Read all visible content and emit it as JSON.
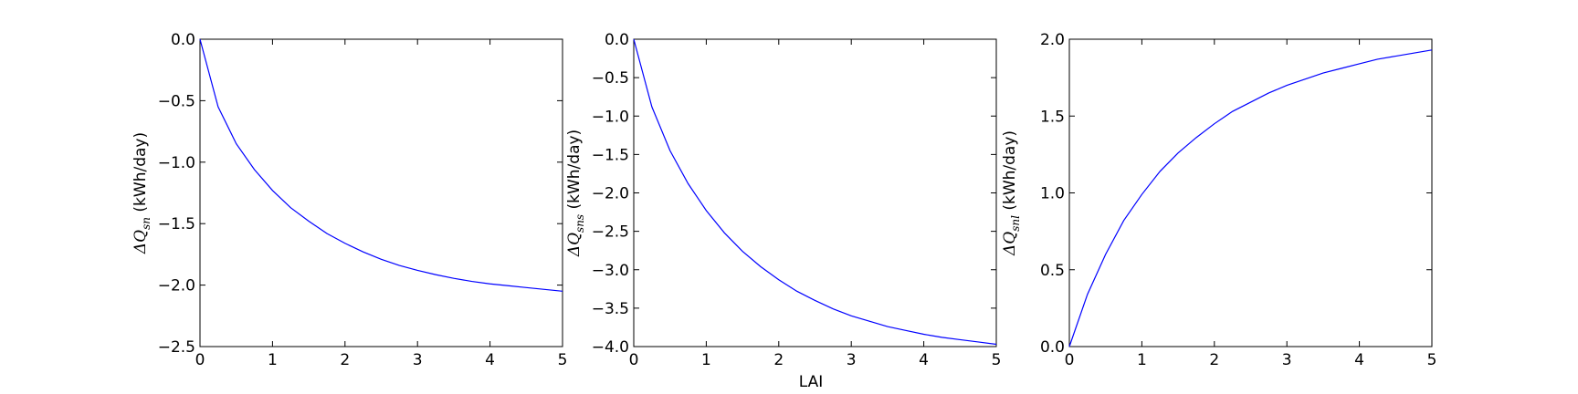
{
  "figure": {
    "xlabel": "LAI"
  },
  "chart_data": [
    {
      "type": "line",
      "ylabel": {
        "prefix": "ΔQ",
        "subscript": "sn",
        "unit": "(kWh/day)"
      },
      "xlim": [
        0,
        5
      ],
      "ylim": [
        -2.5,
        0.0
      ],
      "xticks": [
        "0",
        "1",
        "2",
        "3",
        "4",
        "5"
      ],
      "yticks": [
        "0.0",
        "−0.5",
        "−1.0",
        "−1.5",
        "−2.0",
        "−2.5"
      ],
      "color": "#0000ff",
      "series": [
        {
          "x": [
            0,
            0.25,
            0.5,
            0.75,
            1.0,
            1.25,
            1.5,
            1.75,
            2.0,
            2.25,
            2.5,
            2.75,
            3.0,
            3.25,
            3.5,
            3.75,
            4.0,
            4.25,
            4.5,
            4.75,
            5.0
          ],
          "y": [
            0.0,
            -0.55,
            -0.85,
            -1.06,
            -1.23,
            -1.37,
            -1.48,
            -1.58,
            -1.66,
            -1.73,
            -1.79,
            -1.84,
            -1.88,
            -1.915,
            -1.945,
            -1.97,
            -1.99,
            -2.005,
            -2.02,
            -2.035,
            -2.05
          ]
        }
      ]
    },
    {
      "type": "line",
      "ylabel": {
        "prefix": "ΔQ",
        "subscript": "sns",
        "unit": "(kWh/day)"
      },
      "xlim": [
        0,
        5
      ],
      "ylim": [
        -4.0,
        0.0
      ],
      "xticks": [
        "0",
        "1",
        "2",
        "3",
        "4",
        "5"
      ],
      "yticks": [
        "0.0",
        "−0.5",
        "−1.0",
        "−1.5",
        "−2.0",
        "−2.5",
        "−3.0",
        "−3.5",
        "−4.0"
      ],
      "color": "#0000ff",
      "series": [
        {
          "x": [
            0,
            0.25,
            0.5,
            0.75,
            1.0,
            1.25,
            1.5,
            1.75,
            2.0,
            2.25,
            2.5,
            2.75,
            3.0,
            3.25,
            3.5,
            3.75,
            4.0,
            4.25,
            4.5,
            4.75,
            5.0
          ],
          "y": [
            0.0,
            -0.88,
            -1.45,
            -1.88,
            -2.23,
            -2.52,
            -2.76,
            -2.96,
            -3.13,
            -3.28,
            -3.4,
            -3.51,
            -3.6,
            -3.67,
            -3.74,
            -3.79,
            -3.84,
            -3.88,
            -3.91,
            -3.94,
            -3.97
          ]
        }
      ]
    },
    {
      "type": "line",
      "ylabel": {
        "prefix": "ΔQ",
        "subscript": "snl",
        "unit": "(kWh/day)"
      },
      "xlim": [
        0,
        5
      ],
      "ylim": [
        0.0,
        2.0
      ],
      "xticks": [
        "0",
        "1",
        "2",
        "3",
        "4",
        "5"
      ],
      "yticks": [
        "2.0",
        "1.5",
        "1.0",
        "0.5",
        "0.0"
      ],
      "color": "#0000ff",
      "series": [
        {
          "x": [
            0,
            0.25,
            0.5,
            0.75,
            1.0,
            1.25,
            1.5,
            1.75,
            2.0,
            2.25,
            2.5,
            2.75,
            3.0,
            3.25,
            3.5,
            3.75,
            4.0,
            4.25,
            4.5,
            4.75,
            5.0
          ],
          "y": [
            0.0,
            0.34,
            0.6,
            0.82,
            0.99,
            1.14,
            1.26,
            1.36,
            1.45,
            1.53,
            1.59,
            1.65,
            1.7,
            1.74,
            1.78,
            1.81,
            1.84,
            1.87,
            1.89,
            1.91,
            1.93
          ]
        }
      ]
    }
  ]
}
